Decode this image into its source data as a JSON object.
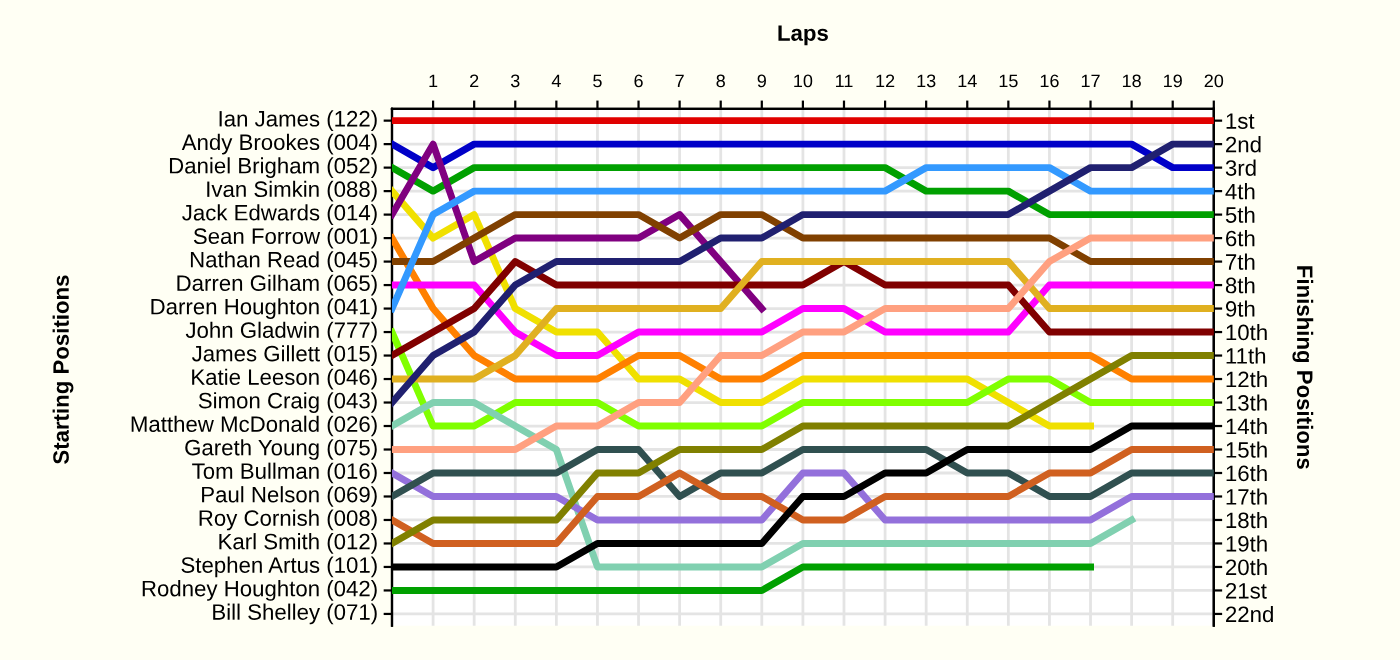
{
  "chart_data": {
    "type": "line",
    "xlabel": "Laps",
    "y2label": "Finishing Positions",
    "x": [
      0,
      1,
      2,
      3,
      4,
      5,
      6,
      7,
      8,
      9,
      10,
      11,
      12,
      13,
      14,
      15,
      16,
      17,
      18,
      19,
      20
    ],
    "xlim": [
      0,
      20
    ],
    "xticks": [
      1,
      2,
      3,
      4,
      5,
      6,
      7,
      8,
      9,
      10,
      11,
      12,
      13,
      14,
      15,
      16,
      17,
      18,
      19,
      20
    ],
    "annotations": [
      "Ian James (122)",
      "Andy Brookes (004)",
      "Daniel Brigham (052)",
      "Ivan Simkin (088)",
      "Jack Edwards (014)",
      "Sean Forrow (001)",
      "Nathan Read (045)",
      "Darren Gilham (065)",
      "Darren Houghton (041)",
      "John Gladwin (777)",
      "James Gillett (015)",
      "Katie Leeson (046)",
      "Simon Craig (043)",
      "Matthew McDonald (026)",
      "Gareth Young (075)",
      "Tom Bullman (016)",
      "Paul Nelson (069)",
      "Roy Cornish (008)",
      "Karl Smith (012)",
      "Stephen Artus (101)",
      "Rodney Houghton (042)",
      "Bill Shelley (071)",
      "Starting Positions"
    ],
    "y2lim": [
      22.5,
      0.5
    ],
    "y2ticks": [
      {
        "value": 1,
        "label": "1st"
      },
      {
        "value": 2,
        "label": "2nd"
      },
      {
        "value": 3,
        "label": "3rd"
      },
      {
        "value": 4,
        "label": "4th"
      },
      {
        "value": 5,
        "label": "5th"
      },
      {
        "value": 6,
        "label": "6th"
      },
      {
        "value": 7,
        "label": "7th"
      },
      {
        "value": 8,
        "label": "8th"
      },
      {
        "value": 9,
        "label": "9th"
      },
      {
        "value": 10,
        "label": "10th"
      },
      {
        "value": 11,
        "label": "11th"
      },
      {
        "value": 12,
        "label": "12th"
      },
      {
        "value": 13,
        "label": "13th"
      },
      {
        "value": 14,
        "label": "14th"
      },
      {
        "value": 15,
        "label": "15th"
      },
      {
        "value": 16,
        "label": "16th"
      },
      {
        "value": 17,
        "label": "17th"
      },
      {
        "value": 18,
        "label": "18th"
      },
      {
        "value": 19,
        "label": "19th"
      },
      {
        "value": 20,
        "label": "20th"
      },
      {
        "value": 21,
        "label": "21st"
      },
      {
        "value": 22,
        "label": "22nd"
      }
    ],
    "grid": true,
    "line_style": "solid",
    "series": [
      {
        "axis": "y2",
        "color": "#e00000",
        "values": [
          1,
          1,
          1,
          1,
          1,
          1,
          1,
          1,
          1,
          1,
          1,
          1,
          1,
          1,
          1,
          1,
          1,
          1,
          1,
          1,
          1
        ]
      },
      {
        "axis": "y2",
        "color": "#0000c8",
        "values": [
          2,
          3,
          2,
          2,
          2,
          2,
          2,
          2,
          2,
          2,
          2,
          2,
          2,
          2,
          2,
          2,
          2,
          2,
          2,
          3,
          3
        ]
      },
      {
        "axis": "y2",
        "color": "#00a000",
        "values": [
          3,
          4,
          3,
          3,
          3,
          3,
          3,
          3,
          3,
          3,
          3,
          3,
          3,
          4,
          4,
          4,
          5,
          5,
          5,
          5,
          5
        ]
      },
      {
        "axis": "y2",
        "color": "#f0e000",
        "values": [
          4,
          6,
          5,
          9,
          10,
          10,
          12,
          12,
          13,
          13,
          12,
          12,
          12,
          12,
          12,
          13,
          14,
          14,
          null,
          null,
          null
        ]
      },
      {
        "axis": "y2",
        "color": "#800080",
        "values": [
          5,
          2,
          7,
          6,
          6,
          6,
          6,
          5,
          7,
          9,
          null,
          null,
          null,
          null,
          null,
          null,
          null,
          null,
          null,
          null,
          null
        ]
      },
      {
        "axis": "y2",
        "color": "#ff8000",
        "values": [
          6,
          9,
          11,
          12,
          12,
          12,
          11,
          11,
          12,
          12,
          11,
          11,
          11,
          11,
          11,
          11,
          11,
          11,
          12,
          12,
          12
        ]
      },
      {
        "axis": "y2",
        "color": "#804000",
        "values": [
          7,
          7,
          6,
          5,
          5,
          5,
          5,
          6,
          5,
          5,
          6,
          6,
          6,
          6,
          6,
          6,
          6,
          7,
          7,
          7,
          7
        ]
      },
      {
        "axis": "y2",
        "color": "#ff00ff",
        "values": [
          8,
          8,
          8,
          10,
          11,
          11,
          10,
          10,
          10,
          10,
          9,
          9,
          10,
          10,
          10,
          10,
          8,
          8,
          8,
          8,
          8
        ]
      },
      {
        "axis": "y2",
        "color": "#3399ff",
        "values": [
          9,
          5,
          4,
          4,
          4,
          4,
          4,
          4,
          4,
          4,
          4,
          4,
          4,
          3,
          3,
          3,
          3,
          4,
          4,
          4,
          4
        ]
      },
      {
        "axis": "y2",
        "color": "#80ff00",
        "values": [
          10,
          14,
          14,
          13,
          13,
          13,
          14,
          14,
          14,
          14,
          13,
          13,
          13,
          13,
          13,
          12,
          12,
          13,
          13,
          13,
          13
        ]
      },
      {
        "axis": "y2",
        "color": "#800000",
        "values": [
          11,
          10,
          9,
          7,
          8,
          8,
          8,
          8,
          8,
          8,
          8,
          7,
          8,
          8,
          8,
          8,
          10,
          10,
          10,
          10,
          10
        ]
      },
      {
        "axis": "y2",
        "color": "#e0b020",
        "values": [
          12,
          12,
          12,
          11,
          9,
          9,
          9,
          9,
          9,
          7,
          7,
          7,
          7,
          7,
          7,
          7,
          9,
          9,
          9,
          9,
          9
        ]
      },
      {
        "axis": "y2",
        "color": "#202070",
        "values": [
          13,
          11,
          10,
          8,
          7,
          7,
          7,
          7,
          6,
          6,
          5,
          5,
          5,
          5,
          5,
          5,
          4,
          3,
          3,
          2,
          2
        ]
      },
      {
        "axis": "y2",
        "color": "#80d0b0",
        "values": [
          14,
          13,
          13,
          14,
          15,
          20,
          20,
          20,
          20,
          20,
          19,
          19,
          19,
          19,
          19,
          19,
          19,
          19,
          18,
          null,
          null
        ]
      },
      {
        "axis": "y2",
        "color": "#ffa080",
        "values": [
          15,
          15,
          15,
          15,
          14,
          14,
          13,
          13,
          11,
          11,
          10,
          10,
          9,
          9,
          9,
          9,
          7,
          6,
          6,
          6,
          6
        ]
      },
      {
        "axis": "y2",
        "color": "#9370db",
        "values": [
          16,
          17,
          17,
          17,
          17,
          18,
          18,
          18,
          18,
          18,
          16,
          16,
          18,
          18,
          18,
          18,
          18,
          18,
          17,
          17,
          17
        ]
      },
      {
        "axis": "y2",
        "color": "#305050",
        "values": [
          17,
          16,
          16,
          16,
          16,
          15,
          15,
          17,
          16,
          16,
          15,
          15,
          15,
          15,
          16,
          16,
          17,
          17,
          16,
          16,
          16
        ]
      },
      {
        "axis": "y2",
        "color": "#d06020",
        "values": [
          18,
          19,
          19,
          19,
          19,
          17,
          17,
          16,
          17,
          17,
          18,
          18,
          17,
          17,
          17,
          17,
          16,
          16,
          15,
          15,
          15
        ]
      },
      {
        "axis": "y2",
        "color": "#808000",
        "values": [
          19,
          18,
          18,
          18,
          18,
          16,
          16,
          15,
          15,
          15,
          14,
          14,
          14,
          14,
          14,
          14,
          13,
          12,
          11,
          11,
          11
        ]
      },
      {
        "axis": "y2",
        "color": "#000000",
        "values": [
          20,
          20,
          20,
          20,
          20,
          19,
          19,
          19,
          19,
          19,
          17,
          17,
          16,
          16,
          15,
          15,
          15,
          15,
          14,
          14,
          14
        ]
      },
      {
        "axis": "y2",
        "color": "#00a000",
        "values": [
          21,
          21,
          21,
          21,
          21,
          21,
          21,
          21,
          21,
          21,
          20,
          20,
          20,
          20,
          20,
          20,
          20,
          20,
          null,
          null,
          null
        ]
      }
    ]
  }
}
